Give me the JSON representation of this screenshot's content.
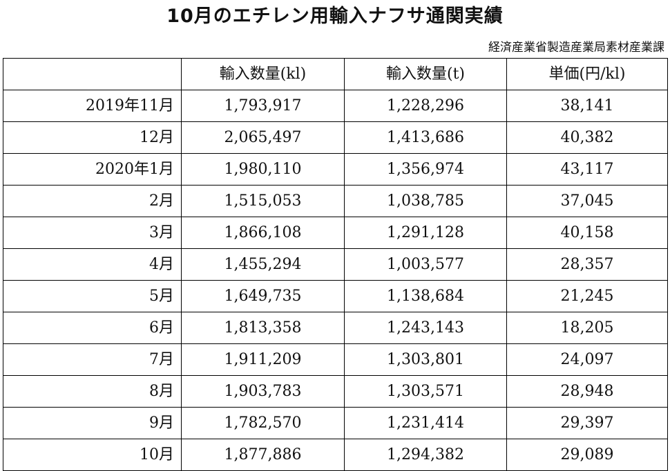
{
  "title": "10月のエチレン用輸入ナフサ通関実績",
  "source": "経済産業省製造産業局素材産業課",
  "table": {
    "headers": [
      "",
      "輸入数量(kl)",
      "輸入数量(t)",
      "単価(円/kl)"
    ],
    "rows": [
      {
        "label": "2019年11月",
        "kl": "1,793,917",
        "t": "1,228,296",
        "price": "38,141"
      },
      {
        "label": "12月",
        "kl": "2,065,497",
        "t": "1,413,686",
        "price": "40,382"
      },
      {
        "label": "2020年1月",
        "kl": "1,980,110",
        "t": "1,356,974",
        "price": "43,117"
      },
      {
        "label": "2月",
        "kl": "1,515,053",
        "t": "1,038,785",
        "price": "37,045"
      },
      {
        "label": "3月",
        "kl": "1,866,108",
        "t": "1,291,128",
        "price": "40,158"
      },
      {
        "label": "4月",
        "kl": "1,455,294",
        "t": "1,003,577",
        "price": "28,357"
      },
      {
        "label": "5月",
        "kl": "1,649,735",
        "t": "1,138,684",
        "price": "21,245"
      },
      {
        "label": "6月",
        "kl": "1,813,358",
        "t": "1,243,143",
        "price": "18,205"
      },
      {
        "label": "7月",
        "kl": "1,911,209",
        "t": "1,303,801",
        "price": "24,097"
      },
      {
        "label": "8月",
        "kl": "1,903,783",
        "t": "1,303,571",
        "price": "28,948"
      },
      {
        "label": "9月",
        "kl": "1,782,570",
        "t": "1,231,414",
        "price": "29,397"
      },
      {
        "label": "10月",
        "kl": "1,877,886",
        "t": "1,294,382",
        "price": "29,089"
      }
    ]
  }
}
